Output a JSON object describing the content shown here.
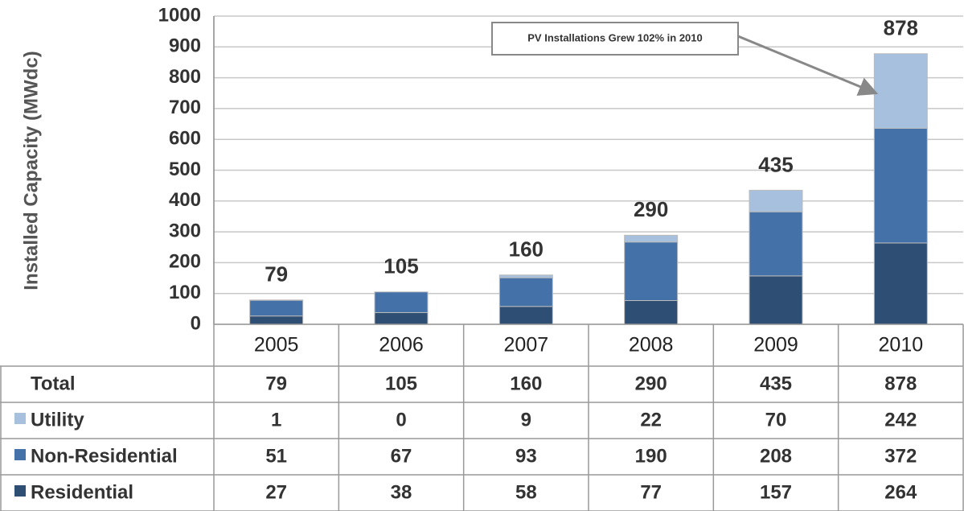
{
  "chart_data": {
    "type": "stacked_bar",
    "ylabel": "Installed Capacity (MWdc)",
    "annotation": "PV Installations Grew 102% in 2010",
    "categories": [
      "2005",
      "2006",
      "2007",
      "2008",
      "2009",
      "2010"
    ],
    "total_label": "Total",
    "totals": [
      79,
      105,
      160,
      290,
      435,
      878
    ],
    "series": [
      {
        "name": "Utility",
        "color": "#a7c0dd",
        "values": [
          1,
          0,
          9,
          22,
          70,
          242
        ]
      },
      {
        "name": "Non-Residential",
        "color": "#4472a8",
        "values": [
          51,
          67,
          93,
          190,
          208,
          372
        ]
      },
      {
        "name": "Residential",
        "color": "#2e4e73",
        "values": [
          27,
          38,
          58,
          77,
          157,
          264
        ]
      }
    ],
    "ylim": [
      0,
      1000
    ],
    "yticks": [
      0,
      100,
      200,
      300,
      400,
      500,
      600,
      700,
      800,
      900,
      1000
    ],
    "grid": true
  }
}
